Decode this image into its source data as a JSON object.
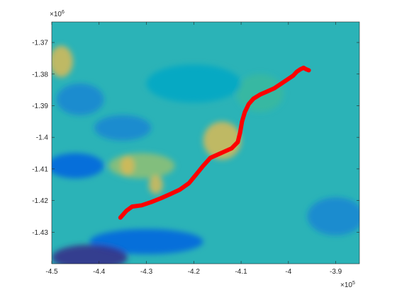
{
  "chart_data": {
    "type": "heatmap",
    "title": "",
    "xlabel": "",
    "ylabel": "",
    "xlim": [
      -4.5,
      -3.85
    ],
    "ylim": [
      -1.44,
      -1.3635
    ],
    "x_ticks": [
      -4.5,
      -4.4,
      -4.3,
      -4.2,
      -4.1,
      -4.0,
      -3.9
    ],
    "x_tick_labels": [
      "-4.5",
      "-4.4",
      "-4.3",
      "-4.2",
      "-4.1",
      "-4",
      "-3.9"
    ],
    "y_ticks": [
      -1.37,
      -1.38,
      -1.39,
      -1.4,
      -1.41,
      -1.42,
      -1.43
    ],
    "y_tick_labels": [
      "-1.37",
      "-1.38",
      "-1.39",
      "-1.4",
      "-1.41",
      "-1.42",
      "-1.43"
    ],
    "x_multiplier": {
      "base": "×10",
      "exp": "5"
    },
    "y_multiplier": {
      "base": "×10",
      "exp": "6"
    },
    "colormap": "parula",
    "colormap_stops": [
      "#352a87",
      "#0363e1",
      "#1485d4",
      "#06a7c6",
      "#38b99e",
      "#92bf73",
      "#d9ba56",
      "#fcce2e",
      "#f9fb0e"
    ],
    "field_background_color": "#2bb3b7",
    "field_features": [
      {
        "x": -4.48,
        "y": -1.376,
        "level": 0.78,
        "sx": 0.025,
        "sy": 0.005
      },
      {
        "x": -4.14,
        "y": -1.401,
        "level": 0.72,
        "sx": 0.04,
        "sy": 0.006
      },
      {
        "x": -4.06,
        "y": -1.386,
        "level": 0.55,
        "sx": 0.05,
        "sy": 0.006
      },
      {
        "x": -4.31,
        "y": -1.409,
        "level": 0.65,
        "sx": 0.07,
        "sy": 0.004
      },
      {
        "x": -4.34,
        "y": -1.409,
        "level": 0.78,
        "sx": 0.015,
        "sy": 0.003
      },
      {
        "x": -4.28,
        "y": -1.415,
        "level": 0.75,
        "sx": 0.015,
        "sy": 0.003
      },
      {
        "x": -4.45,
        "y": -1.409,
        "level": 0.15,
        "sx": 0.06,
        "sy": 0.004
      },
      {
        "x": -4.3,
        "y": -1.433,
        "level": 0.1,
        "sx": 0.12,
        "sy": 0.004
      },
      {
        "x": -4.42,
        "y": -1.438,
        "level": 0.05,
        "sx": 0.08,
        "sy": 0.004
      },
      {
        "x": -4.35,
        "y": -1.397,
        "level": 0.25,
        "sx": 0.06,
        "sy": 0.004
      },
      {
        "x": -3.9,
        "y": -1.425,
        "level": 0.25,
        "sx": 0.06,
        "sy": 0.006
      },
      {
        "x": -4.44,
        "y": -1.388,
        "level": 0.3,
        "sx": 0.05,
        "sy": 0.005
      },
      {
        "x": -4.2,
        "y": -1.383,
        "level": 0.42,
        "sx": 0.1,
        "sy": 0.006
      }
    ],
    "series": [
      {
        "type": "line",
        "color": "#ff0000",
        "x": [
          -4.355,
          -4.342,
          -4.33,
          -4.31,
          -4.29,
          -4.27,
          -4.25,
          -4.23,
          -4.21,
          -4.195,
          -4.18,
          -4.165,
          -4.15,
          -4.135,
          -4.12,
          -4.107,
          -4.102,
          -4.098,
          -4.092,
          -4.084,
          -4.074,
          -4.06,
          -4.045,
          -4.03,
          -4.015,
          -4.0,
          -3.99,
          -3.982,
          -3.975,
          -3.968,
          -3.962,
          -3.957
        ],
        "y": [
          -1.4254,
          -1.4232,
          -1.4219,
          -1.4215,
          -1.4205,
          -1.4193,
          -1.418,
          -1.4166,
          -1.4145,
          -1.4118,
          -1.409,
          -1.4065,
          -1.4055,
          -1.4045,
          -1.4035,
          -1.4015,
          -1.3985,
          -1.395,
          -1.392,
          -1.3895,
          -1.3878,
          -1.3865,
          -1.3855,
          -1.3845,
          -1.383,
          -1.3815,
          -1.3805,
          -1.3792,
          -1.3785,
          -1.378,
          -1.3785,
          -1.3788
        ]
      }
    ],
    "grid": false,
    "legend": "none"
  }
}
